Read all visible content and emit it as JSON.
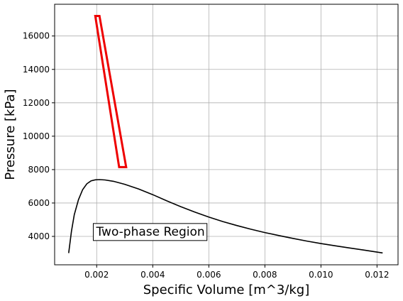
{
  "chart_data": {
    "type": "line",
    "xlabel": "Specific Volume [m^3/kg]",
    "ylabel": "Pressure [kPa]",
    "xlim": [
      0.0005,
      0.01275
    ],
    "ylim": [
      2300,
      17900
    ],
    "grid": true,
    "x_ticks": [
      0.002,
      0.004,
      0.006,
      0.008,
      0.01,
      0.012
    ],
    "x_tick_labels": [
      "0.002",
      "0.004",
      "0.006",
      "0.008",
      "0.010",
      "0.012"
    ],
    "y_ticks": [
      4000,
      6000,
      8000,
      10000,
      12000,
      14000,
      16000
    ],
    "y_tick_labels": [
      "4000",
      "6000",
      "8000",
      "10000",
      "12000",
      "14000",
      "16000"
    ],
    "annotation": {
      "text": "Two-phase Region",
      "x": 0.00198,
      "y": 4050
    },
    "series": [
      {
        "color": "#000000",
        "width": 1.6,
        "closed": false,
        "x": [
          0.001,
          0.0011,
          0.0012,
          0.00135,
          0.0015,
          0.00165,
          0.0018,
          0.00195,
          0.0021,
          0.0023,
          0.0026,
          0.003,
          0.0035,
          0.004,
          0.0045,
          0.005,
          0.0055,
          0.006,
          0.0065,
          0.007,
          0.0075,
          0.008,
          0.0085,
          0.009,
          0.0095,
          0.01,
          0.0105,
          0.011,
          0.0115,
          0.0122
        ],
        "y": [
          3000,
          4300,
          5300,
          6200,
          6800,
          7150,
          7330,
          7390,
          7400,
          7380,
          7300,
          7120,
          6840,
          6500,
          6130,
          5780,
          5460,
          5160,
          4890,
          4650,
          4430,
          4230,
          4050,
          3880,
          3720,
          3570,
          3440,
          3310,
          3190,
          3010
        ]
      },
      {
        "color": "#ee0000",
        "width": 3,
        "closed": true,
        "x": [
          0.00195,
          0.0021,
          0.00305,
          0.0028
        ],
        "y": [
          17200,
          17200,
          8150,
          8150
        ]
      }
    ]
  }
}
